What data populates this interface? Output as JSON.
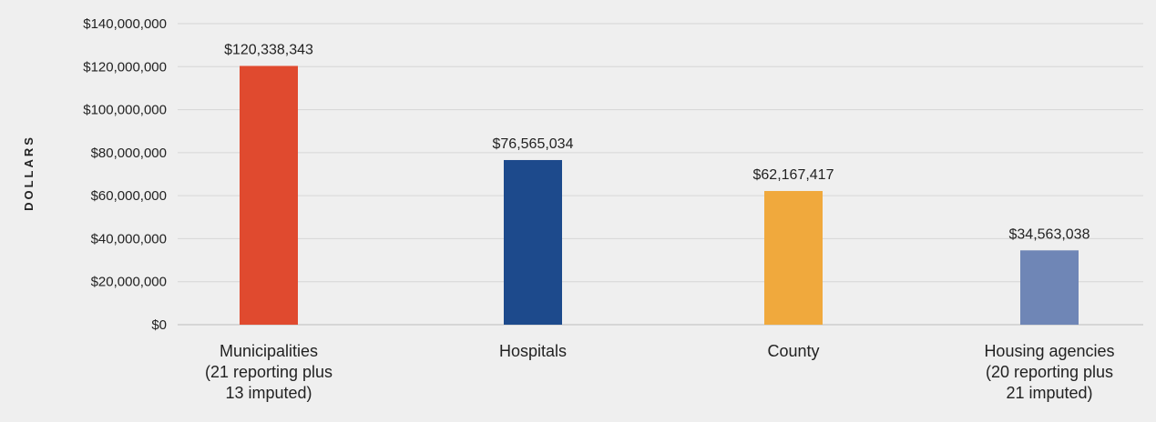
{
  "chart_data": {
    "type": "bar",
    "ylabel": "DOLLARS",
    "xlabel": "",
    "ylim": [
      0,
      140000000
    ],
    "yticks": [
      0,
      20000000,
      40000000,
      60000000,
      80000000,
      100000000,
      120000000,
      140000000
    ],
    "ytick_labels": [
      "$0",
      "$20,000,000",
      "$40,000,000",
      "$60,000,000",
      "$80,000,000",
      "$100,000,000",
      "$120,000,000",
      "$140,000,000"
    ],
    "grid": true,
    "legend": "none",
    "categories": [
      [
        "Municipalities",
        "(21 reporting plus",
        "13 imputed)"
      ],
      [
        "Hospitals"
      ],
      [
        "County"
      ],
      [
        "Housing agencies",
        "(20 reporting plus",
        "21 imputed)"
      ]
    ],
    "values": [
      120338343,
      76565034,
      62167417,
      34563038
    ],
    "value_labels": [
      "$120,338,343",
      "$76,565,034",
      "$62,167,417",
      "$34,563,038"
    ],
    "colors": [
      "#e04a2f",
      "#1d4a8c",
      "#f0a93d",
      "#6f86b6"
    ]
  }
}
